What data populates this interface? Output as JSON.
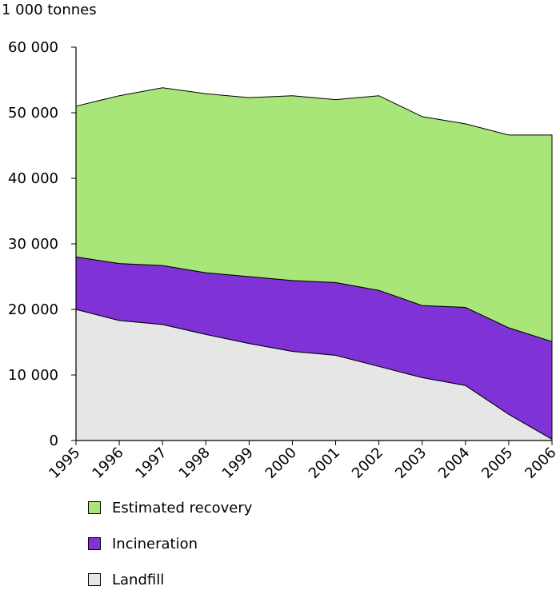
{
  "chart_data": {
    "type": "area",
    "stacked": true,
    "unit_label": "1 000 tonnes",
    "title": "",
    "xlabel": "",
    "ylabel": "",
    "x": [
      "1995",
      "1996",
      "1997",
      "1998",
      "1999",
      "2000",
      "2001",
      "2002",
      "2003",
      "2004",
      "2005",
      "2006"
    ],
    "ylim": [
      0,
      60000
    ],
    "yticks": [
      0,
      10000,
      20000,
      30000,
      40000,
      50000,
      60000
    ],
    "ytick_labels": [
      "0",
      "10 000",
      "20 000",
      "30 000",
      "40 000",
      "50 000",
      "60 000"
    ],
    "grid": false,
    "legend_position": "bottom",
    "series": [
      {
        "name": "Landfill",
        "color": "#e6e6e6",
        "values": [
          20000,
          18300,
          17700,
          16200,
          14800,
          13600,
          13000,
          11300,
          9600,
          8400,
          4000,
          200
        ]
      },
      {
        "name": "Incineration",
        "color": "#7f33d6",
        "values": [
          8000,
          8700,
          9000,
          9400,
          10200,
          10800,
          11100,
          11600,
          11000,
          11900,
          13200,
          14900
        ]
      },
      {
        "name": "Estimated recovery",
        "color": "#a8e67a",
        "values": [
          23000,
          25600,
          27100,
          27300,
          27300,
          28200,
          27900,
          29700,
          28800,
          28000,
          29400,
          31500
        ]
      }
    ],
    "legend_order": [
      "Estimated recovery",
      "Incineration",
      "Landfill"
    ]
  }
}
